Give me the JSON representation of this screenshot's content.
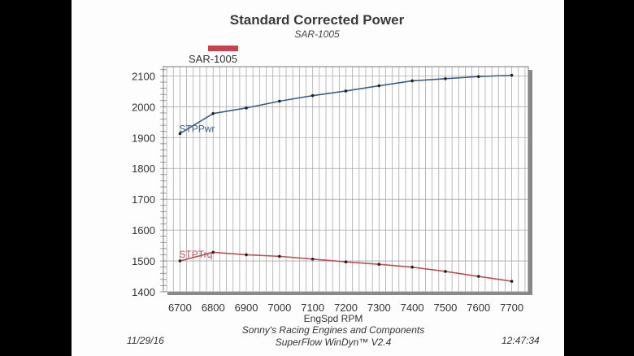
{
  "chart_data": {
    "type": "line",
    "title": "Standard Corrected Power",
    "subtitle": "SAR-1005",
    "legend": [
      {
        "label": "SAR-1005",
        "color": "#c8444c"
      }
    ],
    "legend_placement": "top-left",
    "xlabel": "EngSpd  RPM",
    "x": [
      6700,
      6800,
      6900,
      7000,
      7100,
      7200,
      7300,
      7400,
      7500,
      7600,
      7700
    ],
    "xticks": [
      "6700",
      "6800",
      "6900",
      "7000",
      "7100",
      "7200",
      "7300",
      "7400",
      "7500",
      "7600",
      "7700"
    ],
    "yticks": [
      "1400",
      "1500",
      "1600",
      "1700",
      "1800",
      "1900",
      "2000",
      "2100"
    ],
    "xlim": [
      6650,
      7750
    ],
    "ylim": [
      1400,
      2130
    ],
    "grid": true,
    "series": [
      {
        "name": "STPPwr",
        "color": "#3d5f86",
        "values": [
          1913,
          1978,
          1996,
          2018,
          2036,
          2051,
          2068,
          2084,
          2091,
          2098,
          2102
        ]
      },
      {
        "name": "STPTrq",
        "color": "#b9505a",
        "values": [
          1500,
          1528,
          1520,
          1515,
          1506,
          1497,
          1489,
          1480,
          1466,
          1450,
          1434
        ]
      }
    ]
  },
  "footer": {
    "company": "Sonny's Racing Engines and Components",
    "software": "SuperFlow WinDyn™ V2.4",
    "date": "11/29/16",
    "time": "12:47:34"
  }
}
